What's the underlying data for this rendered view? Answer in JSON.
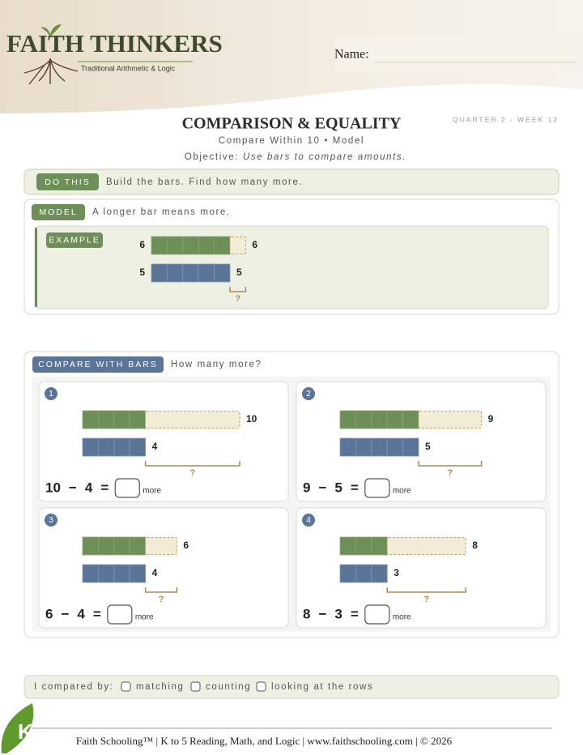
{
  "header": {
    "brand": "FAITH THINKERS",
    "tagline": "Traditional Arithmetic & Logic",
    "name_label": "Name:"
  },
  "worksheet": {
    "quarter": "QUARTER 2 - WEEK 12",
    "title": "COMPARISON & EQUALITY",
    "subtitle": "Compare Within 10 • Model",
    "objective_label": "Objective:",
    "objective": "Use bars to compare amounts."
  },
  "do_this": {
    "tag": "DO THIS",
    "text": "Build the bars. Find how many more."
  },
  "model": {
    "tag": "MODEL",
    "text": "A longer bar means more.",
    "example": {
      "tag": "EXAMPLE",
      "greater": 6,
      "lesser": 5,
      "unknown": "?"
    }
  },
  "compare": {
    "tag": "COMPARE WITH BARS",
    "prompt": "How many more?",
    "minus": "−",
    "equals": "=",
    "unit": "more",
    "unknown": "?",
    "problems": [
      {
        "number": 1,
        "greater": 10,
        "lesser": 4
      },
      {
        "number": 2,
        "greater": 9,
        "lesser": 5
      },
      {
        "number": 3,
        "greater": 6,
        "lesser": 4
      },
      {
        "number": 4,
        "greater": 8,
        "lesser": 3
      }
    ]
  },
  "reflection": {
    "label": "I compared by:",
    "options": [
      "matching",
      "counting",
      "looking at the rows"
    ]
  },
  "footer": {
    "text": "Faith Schooling™ | K to 5 Reading, Math, and Logic | www.faithschooling.com | © 2026"
  }
}
